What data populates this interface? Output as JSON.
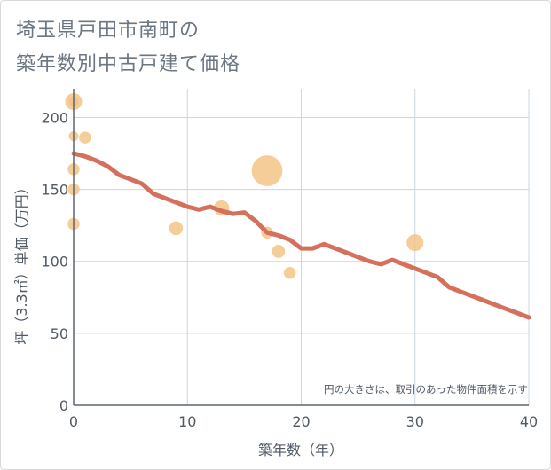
{
  "title_line1": "埼玉県戸田市南町の",
  "title_line2": "築年数別中古戸建て価格",
  "chart_data": {
    "type": "scatter",
    "xlabel": "築年数（年）",
    "ylabel": "坪（3.3㎡）単価（万円）",
    "xlim": [
      0,
      40
    ],
    "ylim": [
      0,
      220
    ],
    "xticks": [
      0,
      10,
      20,
      30,
      40
    ],
    "yticks": [
      0,
      50,
      100,
      150,
      200
    ],
    "grid": true,
    "note": "円の大きさは、取引のあった物件面積を示す",
    "colors": {
      "scatter": "#f3c17f",
      "line": "#d4705c",
      "grid": "#c9d6e3",
      "axis": "#5b6570"
    },
    "scatter": [
      {
        "x": 0,
        "y": 211,
        "size": 3
      },
      {
        "x": 0,
        "y": 211,
        "size": 1
      },
      {
        "x": 0,
        "y": 187,
        "size": 1
      },
      {
        "x": 1,
        "y": 186,
        "size": 1.5
      },
      {
        "x": 0,
        "y": 164,
        "size": 1.5
      },
      {
        "x": 0,
        "y": 150,
        "size": 1.5
      },
      {
        "x": 0,
        "y": 126,
        "size": 1.5
      },
      {
        "x": 9,
        "y": 123,
        "size": 2
      },
      {
        "x": 13,
        "y": 137,
        "size": 2.5
      },
      {
        "x": 17,
        "y": 163,
        "size": 10
      },
      {
        "x": 17,
        "y": 120,
        "size": 1.5
      },
      {
        "x": 18,
        "y": 107,
        "size": 1.8
      },
      {
        "x": 19,
        "y": 92,
        "size": 1.5
      },
      {
        "x": 30,
        "y": 113,
        "size": 3
      }
    ],
    "line": {
      "x": [
        0,
        1,
        2,
        3,
        4,
        5,
        6,
        7,
        8,
        9,
        10,
        11,
        12,
        13,
        14,
        15,
        16,
        17,
        18,
        19,
        20,
        21,
        22,
        23,
        24,
        25,
        26,
        27,
        28,
        29,
        30,
        31,
        32,
        33,
        34,
        35,
        36,
        37,
        38,
        39,
        40
      ],
      "y": [
        175,
        173,
        170,
        166,
        160,
        157,
        154,
        147,
        144,
        141,
        138,
        136,
        138,
        135,
        133,
        134,
        128,
        120,
        118,
        115,
        109,
        109,
        112,
        109,
        106,
        103,
        100,
        98,
        101,
        98,
        95,
        92,
        89,
        82,
        79,
        76,
        73,
        70,
        67,
        64,
        61
      ]
    }
  }
}
